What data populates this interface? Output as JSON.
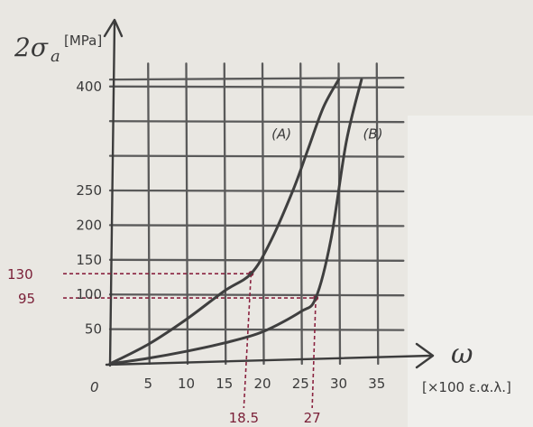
{
  "chart_data": {
    "type": "line",
    "x_axis": {
      "symbol": "ω",
      "unit": "[×100 ε.α.λ.]",
      "ticks": [
        "5",
        "10",
        "15",
        "20",
        "25",
        "30",
        "35"
      ],
      "tick_values": [
        5,
        10,
        15,
        20,
        25,
        30,
        35
      ],
      "range": [
        0,
        40
      ]
    },
    "y_axis": {
      "symbol": "2σ",
      "subscript": "a",
      "unit": "[MPa]",
      "ticks": [
        "50",
        "100",
        "150",
        "200",
        "250",
        "400"
      ],
      "tick_values": [
        50,
        100,
        150,
        200,
        250,
        400
      ],
      "range": [
        0,
        420
      ]
    },
    "origin_label": "0",
    "grid": true,
    "series": [
      {
        "name": "(A)",
        "x": [
          0,
          5,
          10,
          15,
          18.5,
          21,
          24,
          26,
          28,
          30
        ],
        "y": [
          0,
          28,
          64,
          105,
          130,
          175,
          250,
          310,
          370,
          410
        ]
      },
      {
        "name": "(B)",
        "x": [
          0,
          5,
          10,
          15,
          20,
          25,
          27,
          29,
          31,
          33
        ],
        "y": [
          0,
          8,
          18,
          30,
          46,
          75,
          95,
          180,
          320,
          410
        ]
      }
    ],
    "annotations": [
      {
        "series": "(A)",
        "x": 18.5,
        "y": 130,
        "x_label": "18.5",
        "y_label": "130"
      },
      {
        "series": "(B)",
        "x": 27,
        "y": 95,
        "x_label": "27",
        "y_label": "95"
      }
    ]
  }
}
